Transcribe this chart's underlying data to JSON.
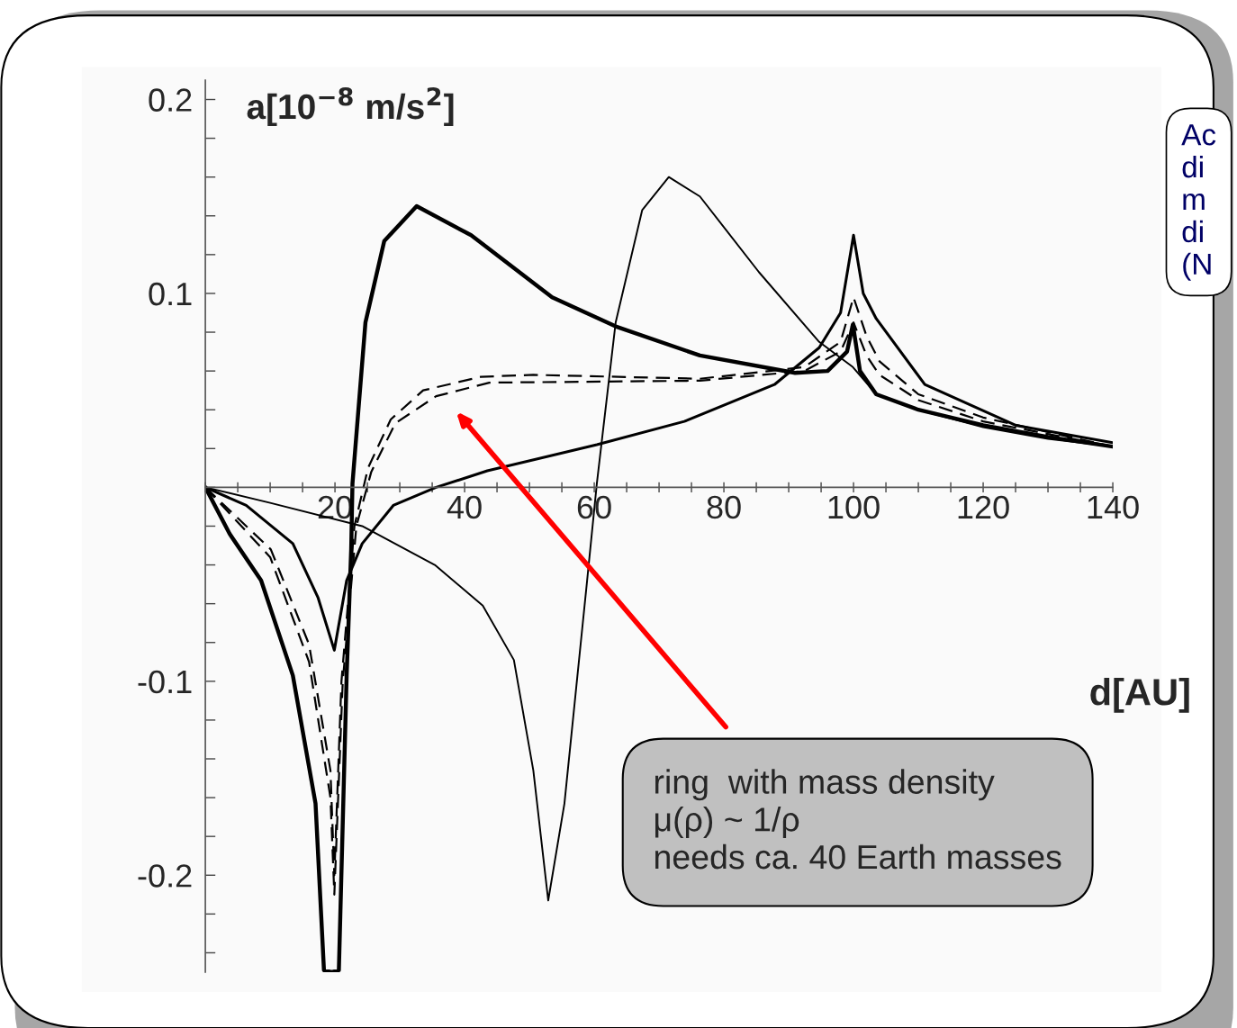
{
  "chart_data": {
    "type": "line",
    "xlabel": "d[AU]",
    "ylabel": "a[10$^{−8}$ m/s$^{2}$]",
    "xlim": [
      0,
      140
    ],
    "ylim": [
      -0.25,
      0.21
    ],
    "xticks": [
      {
        "value": 0,
        "label": null
      },
      {
        "value": 5,
        "label": null
      },
      {
        "value": 10,
        "label": null
      },
      {
        "value": 15,
        "label": null
      },
      20,
      {
        "value": 25,
        "label": null
      },
      {
        "value": 30,
        "label": null
      },
      {
        "value": 35,
        "label": null
      },
      40,
      {
        "value": 45,
        "label": null
      },
      {
        "value": 50,
        "label": null
      },
      {
        "value": 55,
        "label": null
      },
      60,
      {
        "value": 65,
        "label": null
      },
      {
        "value": 70,
        "label": null
      },
      {
        "value": 75,
        "label": null
      },
      80,
      {
        "value": 85,
        "label": null
      },
      {
        "value": 90,
        "label": null
      },
      {
        "value": 95,
        "label": null
      },
      100,
      {
        "value": 105,
        "label": null
      },
      {
        "value": 110,
        "label": null
      },
      {
        "value": 115,
        "label": null
      },
      120,
      {
        "value": 125,
        "label": null
      },
      {
        "value": 130,
        "label": null
      },
      {
        "value": 135,
        "label": null
      },
      140
    ],
    "yticks": [
      {
        "value": -0.24,
        "label": null
      },
      {
        "value": -0.22,
        "label": null
      },
      -0.2,
      {
        "value": -0.18,
        "label": null
      },
      {
        "value": -0.16,
        "label": null
      },
      {
        "value": -0.14,
        "label": null
      },
      {
        "value": -0.12,
        "label": null
      },
      -0.1,
      {
        "value": -0.08,
        "label": null
      },
      {
        "value": -0.06,
        "label": null
      },
      {
        "value": -0.04,
        "label": null
      },
      {
        "value": -0.02,
        "label": null
      },
      {
        "value": 0,
        "label": null
      },
      {
        "value": 0.02,
        "label": null
      },
      {
        "value": 0.04,
        "label": null
      },
      {
        "value": 0.06,
        "label": null
      },
      {
        "value": 0.08,
        "label": null
      },
      0.1,
      {
        "value": 0.12,
        "label": null
      },
      {
        "value": 0.14,
        "label": null
      },
      {
        "value": 0.16,
        "label": null
      },
      {
        "value": 0.18,
        "label": null
      },
      0.2
    ],
    "grid": false,
    "legend": false,
    "marker": "none",
    "series": [
      {
        "color": "#000000",
        "line_style": "solid",
        "x": [
          0,
          3.75,
          8.6,
          13.5,
          17,
          18.3,
          19.5,
          20.6,
          21.8,
          22.5,
          22.7,
          24.7,
          27.6,
          32.6,
          41,
          53.5,
          63.3,
          76.3,
          91,
          96,
          99,
          99.9,
          101,
          103.5,
          110,
          120,
          130,
          140
        ],
        "values": [
          0,
          -0.024,
          -0.048,
          -0.097,
          -0.163,
          -0.249,
          -0.25,
          -0.249,
          -0.097,
          -0.032,
          0.002,
          0.085,
          0.127,
          0.145,
          0.13,
          0.098,
          0.083,
          0.068,
          0.059,
          0.06,
          0.07,
          0.084,
          0.06,
          0.048,
          0.04,
          0.032,
          0.026,
          0.021
        ]
      },
      {
        "color": "#000000",
        "line_style": "solid",
        "x": [
          0,
          10,
          24.2,
          35.4,
          42.8,
          47.6,
          50.6,
          52.9,
          55.4,
          58.9,
          60.4,
          63.3,
          67.4,
          71.5,
          76.3,
          85.4,
          94.7,
          99.9,
          103.5,
          110,
          120,
          130,
          140
        ],
        "values": [
          0,
          -0.008,
          -0.02,
          -0.04,
          -0.061,
          -0.089,
          -0.146,
          -0.213,
          -0.163,
          -0.048,
          0.002,
          0.085,
          0.143,
          0.16,
          0.15,
          0.111,
          0.075,
          0.062,
          0.048,
          0.04,
          0.031,
          0.025,
          0.021
        ]
      },
      {
        "color": "#000000",
        "line_style": "solid",
        "x": [
          0,
          6.3,
          13.5,
          17.4,
          19.9,
          21.8,
          24.2,
          29,
          35.6,
          43.5,
          60.4,
          73.9,
          87.8,
          94.7,
          98,
          100,
          101.5,
          103.5,
          111,
          125,
          140
        ],
        "values": [
          0,
          -0.0093,
          -0.029,
          -0.057,
          -0.084,
          -0.048,
          -0.029,
          -0.0093,
          0,
          0.0085,
          0.022,
          0.034,
          0.053,
          0.072,
          0.09,
          0.13,
          0.1,
          0.087,
          0.053,
          0.032,
          0.023
        ]
      },
      {
        "color": "#000000",
        "line_style": "dashed",
        "x": [
          0,
          10.1,
          16,
          19.3,
          19.9,
          21,
          23,
          25.1,
          28.6,
          33.6,
          42.5,
          50.6,
          76.3,
          92.4,
          98,
          100,
          102,
          104,
          110,
          120,
          140
        ],
        "values": [
          0,
          -0.032,
          -0.081,
          -0.146,
          -0.2,
          -0.1,
          -0.02,
          0.01,
          0.035,
          0.05,
          0.057,
          0.058,
          0.056,
          0.062,
          0.075,
          0.098,
          0.078,
          0.065,
          0.048,
          0.036,
          0.021
        ]
      },
      {
        "color": "#000000",
        "line_style": "dashed",
        "x": [
          0,
          10,
          16,
          19.3,
          19.9,
          21.2,
          23.3,
          25.6,
          29.3,
          35.6,
          43.8,
          76.3,
          92.4,
          98,
          100,
          102,
          104,
          110,
          120,
          140
        ],
        "values": [
          0,
          -0.036,
          -0.09,
          -0.16,
          -0.21,
          -0.1,
          -0.02,
          0.008,
          0.033,
          0.047,
          0.054,
          0.055,
          0.06,
          0.07,
          0.085,
          0.068,
          0.058,
          0.045,
          0.034,
          0.021
        ]
      }
    ],
    "annotations": [
      "ring  with mass density\nμ(ρ) ~ 1/ρ\nneeds ca. 40 Earth masses",
      "Ac\ndi\nm\ndi\n(N"
    ]
  }
}
